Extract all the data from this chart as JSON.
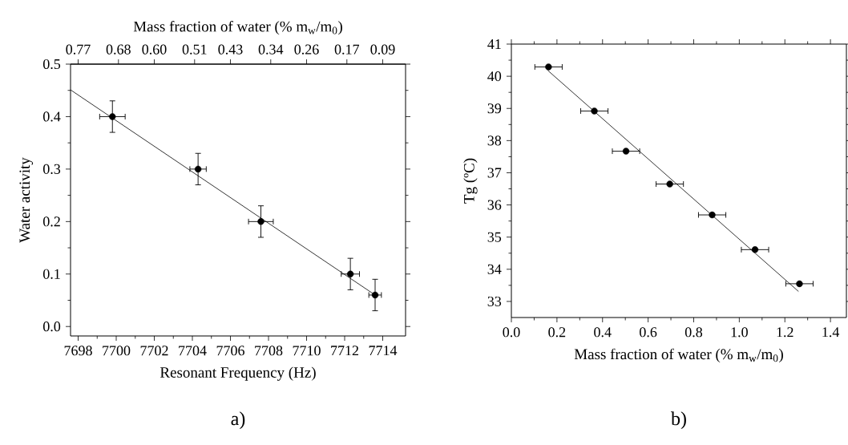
{
  "chart_data": [
    {
      "type": "scatter",
      "xlabel": "Resonant Frequency (Hz)",
      "ylabel": "Water activity",
      "x2label": "Mass fraction of water (% m$_{w}$/m$_{0}$)",
      "xlim": [
        7697.6,
        7715.2
      ],
      "ylim": [
        -0.018,
        0.5
      ],
      "xticks": [
        7698,
        7700,
        7702,
        7704,
        7706,
        7708,
        7710,
        7712,
        7714
      ],
      "yticks": [
        {
          "value": 0,
          "label": "0.0"
        },
        0.1,
        0.2,
        0.3,
        0.4,
        0.5
      ],
      "x2lim": [
        0.787,
        0.039
      ],
      "x2ticks": [
        0.77,
        0.68,
        {
          "value": 0.6,
          "label": "0.60"
        },
        0.51,
        0.43,
        0.34,
        0.26,
        0.17,
        0.09
      ],
      "series": [
        {
          "color": "#000000",
          "x": [
            7699.8,
            7704.3,
            7707.6,
            7712.3,
            7713.6
          ],
          "values": [
            0.4,
            0.3,
            0.2,
            0.1,
            0.06
          ],
          "errors": [
            0.03,
            0.03,
            0.03,
            0.03,
            0.03
          ],
          "xerrors": [
            0.67,
            0.43,
            0.65,
            0.48,
            0.33
          ]
        },
        {
          "type": "line",
          "color": "#000000",
          "x": [
            7697.6,
            7713.6
          ],
          "values": [
            0.451,
            0.06
          ]
        }
      ],
      "annotations": [
        "a)"
      ]
    },
    {
      "type": "scatter",
      "xlabel": "Mass fraction of water (% m$_{w}$/m$_{0}$)",
      "ylabel": "Tg (ºC)",
      "xlim": [
        0.0,
        1.47
      ],
      "ylim": [
        32.5,
        41
      ],
      "xticks": [
        {
          "value": 0,
          "label": "0.0"
        },
        0.2,
        0.4,
        0.6,
        0.8,
        {
          "value": 1,
          "label": "1.0"
        },
        1.2,
        1.4
      ],
      "yticks": [
        33,
        34,
        35,
        36,
        37,
        38,
        39,
        40,
        41
      ],
      "series": [
        {
          "color": "#000000",
          "x": [
            0.163,
            0.364,
            0.503,
            0.695,
            0.881,
            1.069,
            1.264
          ],
          "values": [
            40.29,
            38.92,
            37.67,
            36.65,
            35.69,
            34.61,
            33.55
          ],
          "xerrors": [
            0.06,
            0.06,
            0.06,
            0.06,
            0.06,
            0.06,
            0.06
          ]
        },
        {
          "type": "line",
          "color": "#000000",
          "x": [
            0.16,
            1.26
          ],
          "values": [
            40.18,
            33.31
          ]
        }
      ],
      "annotations": [
        "b)"
      ]
    }
  ]
}
